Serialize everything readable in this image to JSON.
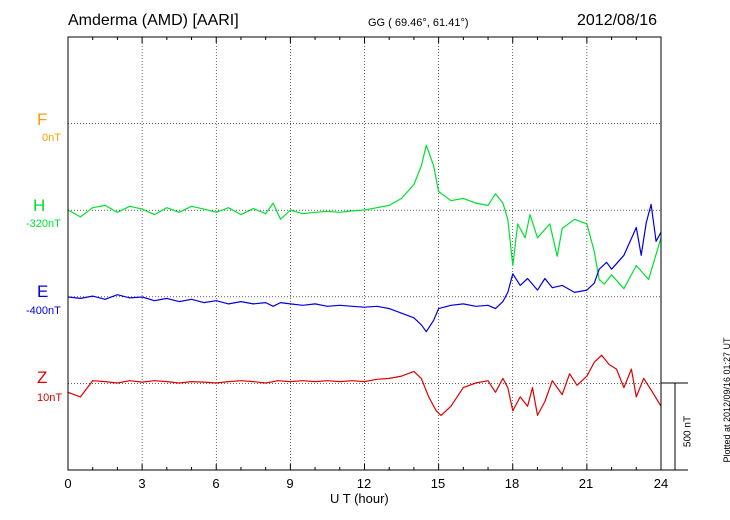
{
  "header": {
    "station": "Amderma (AMD)  [AARI]",
    "coords": "GG ( 69.46°,  61.41°)",
    "date": "2012/08/16"
  },
  "side_note": "Plotted at 2012/09/16 01:27 UT",
  "scale_bar": {
    "label": "500 nT",
    "value_nT": 500
  },
  "chart_data": {
    "type": "line",
    "xlabel": "U T (hour)",
    "xlim": [
      0,
      24
    ],
    "x_ticks": [
      "0",
      "3",
      "6",
      "9",
      "12",
      "15",
      "18",
      "21",
      "24"
    ],
    "grid": true,
    "nT_per_div": 187,
    "series": [
      {
        "name": "F",
        "offset_label": "0nT",
        "color": "#f5a000",
        "baseline_nT": 0,
        "points": []
      },
      {
        "name": "H",
        "offset_label": "-320nT",
        "color": "#00e030",
        "baseline_nT": -320,
        "points": [
          [
            0,
            0
          ],
          [
            0.5,
            -15
          ],
          [
            1,
            5
          ],
          [
            1.5,
            10
          ],
          [
            2,
            -5
          ],
          [
            2.5,
            8
          ],
          [
            3,
            2
          ],
          [
            3.5,
            -10
          ],
          [
            4,
            5
          ],
          [
            4.5,
            -5
          ],
          [
            5,
            8
          ],
          [
            5.5,
            2
          ],
          [
            6,
            -5
          ],
          [
            6.5,
            5
          ],
          [
            7,
            -10
          ],
          [
            7.5,
            3
          ],
          [
            8,
            -8
          ],
          [
            8.3,
            15
          ],
          [
            8.6,
            -20
          ],
          [
            9,
            0
          ],
          [
            9.5,
            -8
          ],
          [
            10,
            -5
          ],
          [
            10.5,
            -3
          ],
          [
            11,
            -5
          ],
          [
            11.5,
            -2
          ],
          [
            12,
            0
          ],
          [
            12.5,
            5
          ],
          [
            13,
            10
          ],
          [
            13.5,
            25
          ],
          [
            14,
            55
          ],
          [
            14.3,
            95
          ],
          [
            14.5,
            140
          ],
          [
            14.8,
            95
          ],
          [
            15,
            40
          ],
          [
            15.5,
            20
          ],
          [
            16,
            25
          ],
          [
            16.5,
            15
          ],
          [
            17,
            10
          ],
          [
            17.3,
            35
          ],
          [
            17.6,
            15
          ],
          [
            17.8,
            -20
          ],
          [
            18,
            -120
          ],
          [
            18.2,
            -30
          ],
          [
            18.5,
            -60
          ],
          [
            18.7,
            -10
          ],
          [
            19,
            -60
          ],
          [
            19.5,
            -30
          ],
          [
            19.8,
            -100
          ],
          [
            20,
            -40
          ],
          [
            20.5,
            -20
          ],
          [
            21,
            -30
          ],
          [
            21.3,
            -90
          ],
          [
            21.5,
            -150
          ],
          [
            21.7,
            -160
          ],
          [
            22,
            -140
          ],
          [
            22.5,
            -170
          ],
          [
            23,
            -120
          ],
          [
            23.5,
            -150
          ],
          [
            24,
            -60
          ]
        ]
      },
      {
        "name": "E",
        "offset_label": "-400nT",
        "color": "#0000e0",
        "baseline_nT": -400,
        "points": [
          [
            0,
            0
          ],
          [
            0.5,
            -3
          ],
          [
            1,
            2
          ],
          [
            1.5,
            -5
          ],
          [
            2,
            5
          ],
          [
            2.5,
            -2
          ],
          [
            3,
            0
          ],
          [
            3.5,
            -8
          ],
          [
            4,
            -3
          ],
          [
            4.5,
            -10
          ],
          [
            5,
            -5
          ],
          [
            5.5,
            -12
          ],
          [
            6,
            -8
          ],
          [
            6.5,
            -15
          ],
          [
            7,
            -10
          ],
          [
            7.5,
            -15
          ],
          [
            8,
            -12
          ],
          [
            8.3,
            -20
          ],
          [
            8.6,
            -12
          ],
          [
            9,
            -15
          ],
          [
            9.5,
            -18
          ],
          [
            10,
            -15
          ],
          [
            10.5,
            -20
          ],
          [
            11,
            -18
          ],
          [
            11.5,
            -20
          ],
          [
            12,
            -22
          ],
          [
            12.5,
            -20
          ],
          [
            13,
            -25
          ],
          [
            13.5,
            -35
          ],
          [
            14,
            -45
          ],
          [
            14.3,
            -60
          ],
          [
            14.5,
            -75
          ],
          [
            14.8,
            -50
          ],
          [
            15,
            -25
          ],
          [
            15.5,
            -18
          ],
          [
            16,
            -15
          ],
          [
            16.5,
            -20
          ],
          [
            17,
            -18
          ],
          [
            17.3,
            -25
          ],
          [
            17.6,
            -10
          ],
          [
            17.8,
            10
          ],
          [
            18,
            50
          ],
          [
            18.3,
            25
          ],
          [
            18.6,
            40
          ],
          [
            19,
            15
          ],
          [
            19.3,
            40
          ],
          [
            19.6,
            20
          ],
          [
            20,
            25
          ],
          [
            20.5,
            10
          ],
          [
            21,
            15
          ],
          [
            21.3,
            30
          ],
          [
            21.5,
            60
          ],
          [
            21.8,
            75
          ],
          [
            22,
            60
          ],
          [
            22.5,
            90
          ],
          [
            23,
            150
          ],
          [
            23.2,
            90
          ],
          [
            23.4,
            160
          ],
          [
            23.6,
            200
          ],
          [
            23.8,
            120
          ],
          [
            24,
            140
          ]
        ]
      },
      {
        "name": "Z",
        "offset_label": "10nT",
        "color": "#e00000",
        "baseline_nT": 10,
        "points": [
          [
            0,
            -20
          ],
          [
            0.5,
            -30
          ],
          [
            1,
            5
          ],
          [
            1.5,
            3
          ],
          [
            2,
            0
          ],
          [
            2.5,
            5
          ],
          [
            3,
            2
          ],
          [
            3.5,
            5
          ],
          [
            4,
            3
          ],
          [
            4.5,
            0
          ],
          [
            5,
            3
          ],
          [
            5.5,
            2
          ],
          [
            6,
            0
          ],
          [
            6.5,
            3
          ],
          [
            7,
            5
          ],
          [
            7.5,
            3
          ],
          [
            8,
            0
          ],
          [
            8.5,
            5
          ],
          [
            9,
            3
          ],
          [
            9.5,
            5
          ],
          [
            10,
            3
          ],
          [
            10.5,
            5
          ],
          [
            11,
            3
          ],
          [
            11.5,
            5
          ],
          [
            12,
            3
          ],
          [
            12.5,
            8
          ],
          [
            13,
            10
          ],
          [
            13.5,
            15
          ],
          [
            14,
            25
          ],
          [
            14.3,
            10
          ],
          [
            14.6,
            -30
          ],
          [
            14.9,
            -60
          ],
          [
            15.1,
            -70
          ],
          [
            15.5,
            -50
          ],
          [
            16,
            -10
          ],
          [
            16.5,
            0
          ],
          [
            17,
            5
          ],
          [
            17.3,
            -20
          ],
          [
            17.6,
            10
          ],
          [
            17.8,
            -10
          ],
          [
            18,
            -60
          ],
          [
            18.3,
            -30
          ],
          [
            18.6,
            -50
          ],
          [
            18.8,
            -10
          ],
          [
            19,
            -70
          ],
          [
            19.3,
            -40
          ],
          [
            19.6,
            5
          ],
          [
            20,
            -25
          ],
          [
            20.3,
            20
          ],
          [
            20.6,
            -5
          ],
          [
            21,
            15
          ],
          [
            21.3,
            45
          ],
          [
            21.6,
            60
          ],
          [
            21.9,
            40
          ],
          [
            22.2,
            30
          ],
          [
            22.5,
            -10
          ],
          [
            22.8,
            30
          ],
          [
            23,
            -30
          ],
          [
            23.3,
            10
          ],
          [
            23.6,
            -15
          ],
          [
            24,
            -50
          ]
        ]
      }
    ]
  }
}
